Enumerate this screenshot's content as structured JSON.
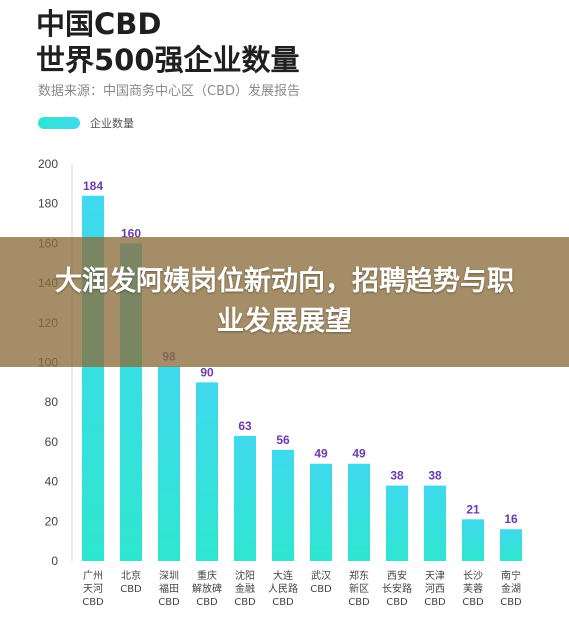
{
  "header": {
    "title_line1": "中国CBD",
    "title_line2": "世界500强企业数量",
    "source": "数据来源：中国商务中心区（CBD）发展报告"
  },
  "banner": {
    "text": "大润发阿姨岗位新动向，招聘趋势与职业发展展望"
  },
  "colors": {
    "bar_top": "#3fd9ee",
    "bar_bottom": "#2ee6cf",
    "value_label": "#6a3bb0",
    "axis": "#444444"
  },
  "chart_data": {
    "type": "bar",
    "title": "中国CBD 世界500强企业数量",
    "legend": [
      "企业数量"
    ],
    "categories": [
      [
        "广州",
        "天河",
        "CBD"
      ],
      [
        "北京",
        "CBD"
      ],
      [
        "深圳",
        "福田",
        "CBD"
      ],
      [
        "重庆",
        "解放碑",
        "CBD"
      ],
      [
        "沈阳",
        "金融",
        "CBD"
      ],
      [
        "大连",
        "人民路",
        "CBD"
      ],
      [
        "武汉",
        "CBD"
      ],
      [
        "郑东",
        "新区",
        "CBD"
      ],
      [
        "西安",
        "长安路",
        "CBD"
      ],
      [
        "天津",
        "河西",
        "CBD"
      ],
      [
        "长沙",
        "芙蓉",
        "CBD"
      ],
      [
        "南宁",
        "金湖",
        "CBD"
      ]
    ],
    "series": [
      {
        "name": "企业数量",
        "values": [
          184,
          160,
          98,
          90,
          63,
          56,
          49,
          49,
          38,
          38,
          21,
          16
        ]
      }
    ],
    "ylim": [
      0,
      200
    ],
    "yticks": [
      0,
      20,
      40,
      60,
      80,
      100,
      120,
      140,
      160,
      180,
      200
    ],
    "grid": false
  }
}
